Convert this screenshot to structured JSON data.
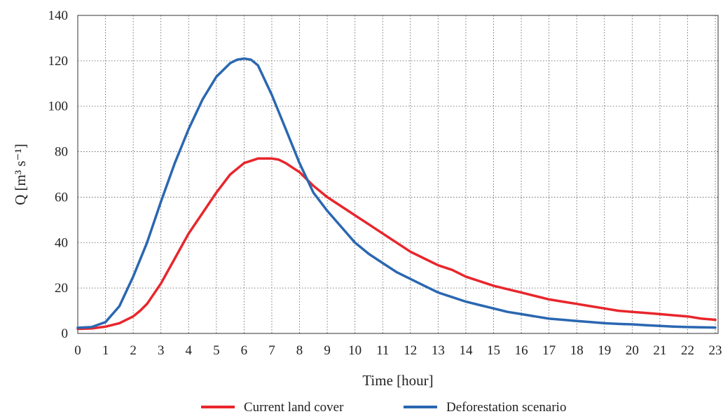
{
  "chart_data": {
    "type": "line",
    "xlabel": "Time [hour]",
    "ylabel": "Q [m³ s⁻¹]",
    "xlim": [
      0,
      23.1
    ],
    "ylim": [
      0,
      140
    ],
    "xticks": [
      0,
      1,
      2,
      3,
      4,
      5,
      6,
      7,
      8,
      9,
      10,
      11,
      12,
      13,
      14,
      15,
      16,
      17,
      18,
      19,
      20,
      21,
      22,
      23
    ],
    "yticks": [
      0,
      20,
      40,
      60,
      80,
      100,
      120,
      140
    ],
    "grid": true,
    "legend_position": "bottom-center",
    "series": [
      {
        "name": "Current land cover",
        "color": "#e8262c",
        "x": [
          0,
          0.5,
          1,
          1.5,
          2,
          2.25,
          2.5,
          3,
          3.5,
          4,
          4.5,
          5,
          5.5,
          6,
          6.5,
          7,
          7.25,
          7.5,
          8,
          8.5,
          9,
          9.5,
          10,
          10.5,
          11,
          11.5,
          12,
          12.5,
          13,
          13.5,
          14,
          14.5,
          15,
          15.5,
          16,
          16.5,
          17,
          17.5,
          18,
          18.5,
          19,
          19.5,
          20,
          20.5,
          21,
          21.5,
          22,
          22.5,
          23
        ],
        "values": [
          2,
          2.2,
          3,
          4.5,
          7.5,
          10,
          13,
          22,
          33,
          44,
          53,
          62,
          70,
          75,
          77,
          77,
          76.5,
          75,
          71,
          65,
          60,
          56,
          52,
          48,
          44,
          40,
          36,
          33,
          30,
          28,
          25,
          23,
          21,
          19.5,
          18,
          16.5,
          15,
          14,
          13,
          12,
          11,
          10,
          9.5,
          9,
          8.5,
          8,
          7.5,
          6.5,
          6
        ]
      },
      {
        "name": "Deforestation scenario",
        "color": "#2a67b1",
        "x": [
          0,
          0.5,
          1,
          1.5,
          2,
          2.5,
          3,
          3.5,
          4,
          4.5,
          5,
          5.5,
          5.75,
          6,
          6.25,
          6.5,
          7,
          7.5,
          8,
          8.5,
          9,
          9.5,
          10,
          10.5,
          11,
          11.5,
          12,
          12.5,
          13,
          13.5,
          14,
          14.5,
          15,
          15.5,
          16,
          16.5,
          17,
          17.5,
          18,
          18.5,
          19,
          19.5,
          20,
          20.5,
          21,
          21.5,
          22,
          22.5,
          23
        ],
        "values": [
          2.5,
          2.8,
          5,
          12,
          25,
          40,
          58,
          75,
          90,
          103,
          113,
          119,
          120.5,
          121,
          120.5,
          118,
          105,
          90,
          75,
          62,
          54,
          47,
          40,
          35,
          31,
          27,
          24,
          21,
          18,
          16,
          14,
          12.5,
          11,
          9.5,
          8.5,
          7.5,
          6.5,
          6,
          5.5,
          5,
          4.5,
          4.2,
          4,
          3.6,
          3.3,
          3,
          2.8,
          2.7,
          2.6
        ]
      }
    ]
  }
}
